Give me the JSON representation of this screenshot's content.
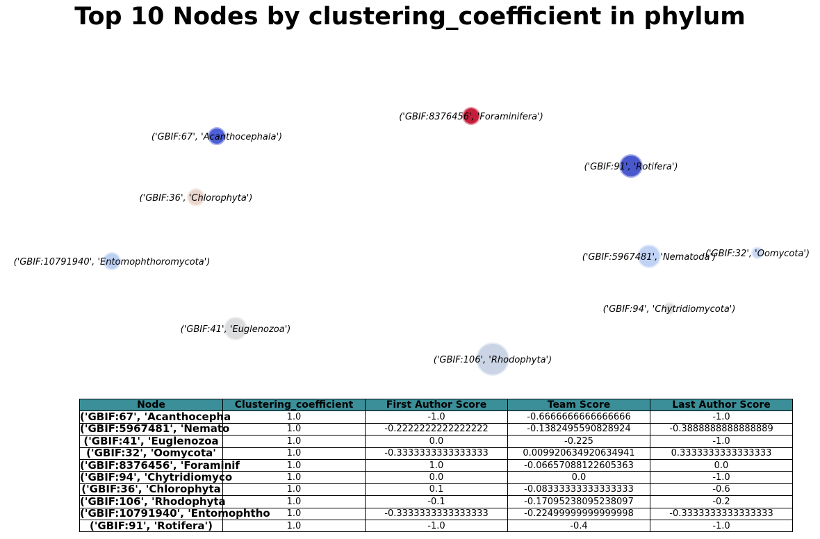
{
  "title": "Top 10 Nodes by clustering_coefficient in phylum",
  "chart_data": {
    "type": "network-graph",
    "title": "Top 10 Nodes by clustering_coefficient in phylum",
    "nodes": [
      {
        "label": "('GBIF:8376456', 'Foraminifera')",
        "color": "#c0112f",
        "size": "small"
      },
      {
        "label": "('GBIF:67', 'Acanthocephala')",
        "color": "#4355d4",
        "size": "small"
      },
      {
        "label": "('GBIF:91', 'Rotifera')",
        "color": "#3f4fcb",
        "size": "medium"
      },
      {
        "label": "('GBIF:36', 'Chlorophyta')",
        "color": "#e8d5cb",
        "size": "small"
      },
      {
        "label": "('GBIF:10791940', 'Entomophthoromycota')",
        "color": "#b8cdf2",
        "size": "small"
      },
      {
        "label": "('GBIF:5967481', 'Nematoda')",
        "color": "#bed0f4",
        "size": "medium"
      },
      {
        "label": "('GBIF:32', 'Oomycota')",
        "color": "#c3d4f3",
        "size": "tiny"
      },
      {
        "label": "('GBIF:94', 'Chytridiomycota')",
        "color": "#dcdcdc",
        "size": "tiny"
      },
      {
        "label": "('GBIF:41', 'Euglenozoa')",
        "color": "#d9dadd",
        "size": "medium"
      },
      {
        "label": "('GBIF:106', 'Rhodophyta')",
        "color": "#c6d2e3",
        "size": "large"
      }
    ],
    "table": {
      "columns": [
        "Node",
        "Clustering_coefficient",
        "First Author Score",
        "Team Score",
        "Last Author Score"
      ],
      "header_color": "#3a8f99",
      "rows": [
        [
          "('GBIF:67', 'Acanthocepha",
          "1.0",
          "-1.0",
          "-0.6666666666666666",
          "-1.0"
        ],
        [
          "('GBIF:5967481', 'Nemato",
          "1.0",
          "-0.2222222222222222",
          "-0.1382495590828924",
          "-0.3888888888888889"
        ],
        [
          "('GBIF:41', 'Euglenozoa",
          "1.0",
          "0.0",
          "-0.225",
          "-1.0"
        ],
        [
          "('GBIF:32', 'Oomycota'",
          "1.0",
          "-0.3333333333333333",
          "0.009920634920634941",
          "0.3333333333333333"
        ],
        [
          "('GBIF:8376456', 'Foraminif",
          "1.0",
          "1.0",
          "-0.06657088122605363",
          "0.0"
        ],
        [
          "('GBIF:94', 'Chytridiomyco",
          "1.0",
          "0.0",
          "0.0",
          "-1.0"
        ],
        [
          "('GBIF:36', 'Chlorophyta",
          "1.0",
          "0.1",
          "-0.08333333333333333",
          "-0.6"
        ],
        [
          "('GBIF:106', 'Rhodophyta",
          "1.0",
          "-0.1",
          "-0.17095238095238097",
          "-0.2"
        ],
        [
          "('GBIF:10791940', 'Entomophtho",
          "1.0",
          "-0.3333333333333333",
          "-0.22499999999999998",
          "-0.3333333333333333"
        ],
        [
          "('GBIF:91', 'Rotifera')",
          "1.0",
          "-1.0",
          "-0.4",
          "-1.0"
        ]
      ]
    }
  }
}
